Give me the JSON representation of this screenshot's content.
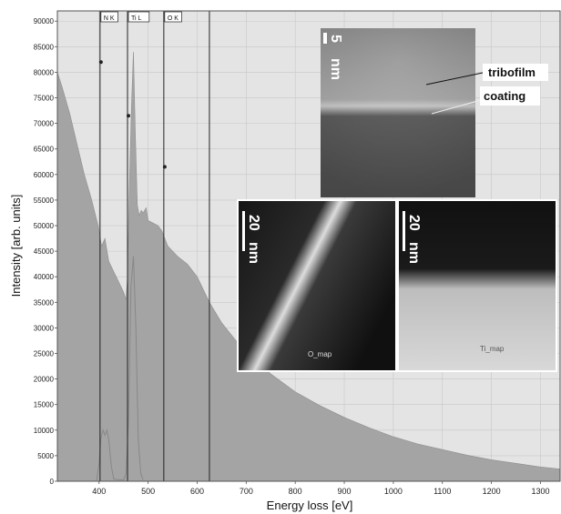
{
  "chart_data": {
    "type": "area",
    "title": "",
    "xlabel": "Energy loss [eV]",
    "ylabel": "Intensity [arb. units]",
    "xlim": [
      315,
      1340
    ],
    "ylim": [
      0,
      92000
    ],
    "xticks": [
      400,
      500,
      600,
      700,
      800,
      900,
      1000,
      1100,
      1200,
      1300
    ],
    "yticks": [
      0,
      5000,
      10000,
      15000,
      20000,
      25000,
      30000,
      35000,
      40000,
      45000,
      50000,
      55000,
      60000,
      65000,
      70000,
      75000,
      80000,
      85000,
      90000
    ],
    "grid": true,
    "fill_color": "#a4a4a4",
    "background_color": "#e4e4e4",
    "series": [
      {
        "x": [
          315,
          325,
          340,
          355,
          370,
          385,
          398,
          400,
          405,
          412,
          420,
          430,
          440,
          450,
          455,
          458,
          462,
          466,
          470,
          474,
          478,
          482,
          486,
          490,
          496,
          500,
          510,
          520,
          528,
          532,
          540,
          560,
          580,
          600,
          625,
          650,
          700,
          750,
          800,
          850,
          900,
          950,
          1000,
          1050,
          1100,
          1150,
          1200,
          1250,
          1300,
          1340
        ],
        "y": [
          80000,
          77000,
          72000,
          66000,
          60000,
          55000,
          50000,
          49000,
          46000,
          47500,
          43000,
          41000,
          39000,
          37000,
          35500,
          40000,
          59000,
          73000,
          84000,
          68000,
          54000,
          52000,
          53000,
          52500,
          53500,
          51000,
          50500,
          50000,
          49000,
          48000,
          46000,
          44000,
          42500,
          40000,
          35000,
          31000,
          25000,
          21000,
          17500,
          14800,
          12500,
          10500,
          8700,
          7300,
          6200,
          5100,
          4200,
          3500,
          2800,
          2400
        ]
      },
      {
        "x": [
          395,
          400,
          404,
          408,
          412,
          416,
          420,
          425,
          430,
          440,
          450,
          455,
          460,
          465,
          470,
          475,
          480,
          485,
          490
        ],
        "y": [
          200,
          3500,
          8500,
          10000,
          9000,
          10000,
          8000,
          3000,
          400,
          300,
          250,
          1500,
          12000,
          38000,
          44000,
          30000,
          8000,
          1500,
          300
        ]
      }
    ],
    "edge_lines": [
      {
        "label": "N K",
        "x": 402,
        "marker_y": 82000
      },
      {
        "label": "Ti L",
        "x": 458,
        "marker_y": 71500
      },
      {
        "label": "O K",
        "x": 532,
        "marker_y": 61500
      },
      {
        "label": "",
        "x": 625,
        "marker_y": null
      }
    ]
  },
  "insets": {
    "tem": {
      "scale_value": "5",
      "scale_unit": "nm",
      "label_tribofilm": "tribofilm",
      "label_coating": "coating"
    },
    "o_map": {
      "scale_value": "20",
      "scale_unit": "nm",
      "caption": "O_map"
    },
    "ti_map": {
      "scale_value": "20",
      "scale_unit": "nm",
      "caption": "Ti_map"
    }
  }
}
